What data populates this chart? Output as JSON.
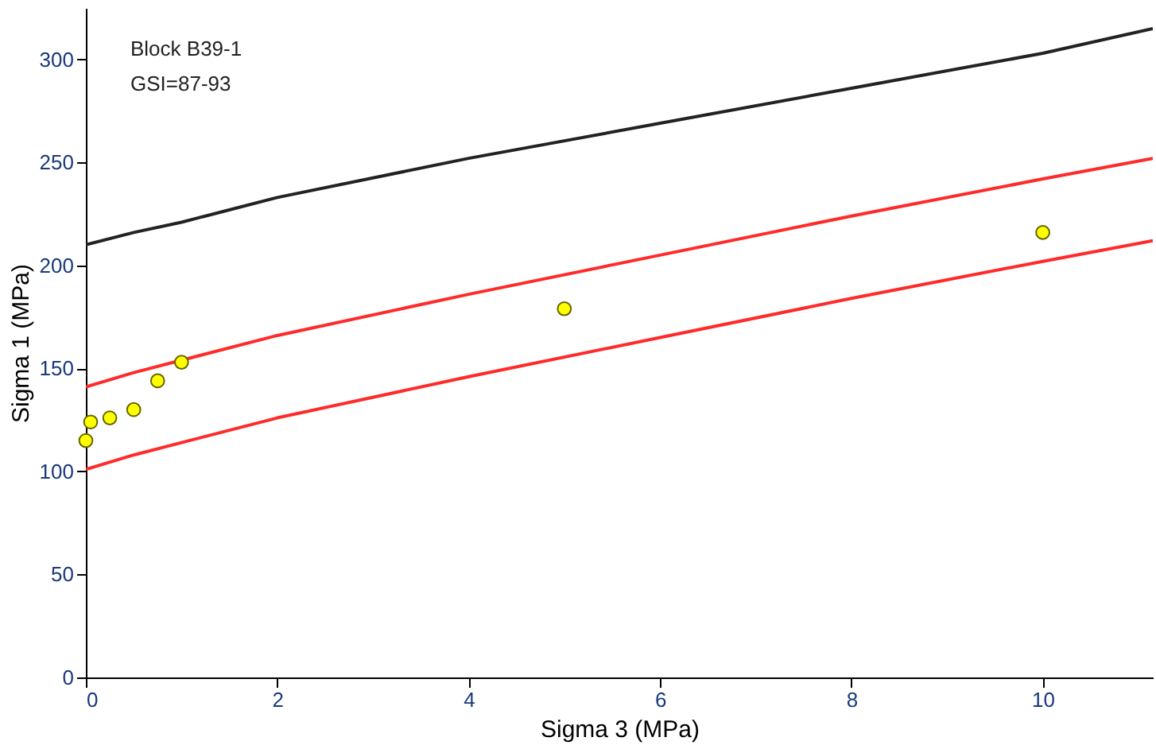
{
  "chart_data": {
    "type": "scatter",
    "xlabel": "Sigma 3 (MPa)",
    "ylabel": "Sigma 1 (MPa)",
    "annotations": [
      "Block B39-1",
      "GSI=87-93"
    ],
    "xlim": [
      0,
      11.15
    ],
    "xticks": [
      0,
      2,
      4,
      6,
      8,
      10
    ],
    "ylim": [
      0,
      325
    ],
    "yticks": [
      0,
      50,
      100,
      150,
      200,
      250,
      300
    ],
    "grid": false,
    "series": [
      {
        "type": "line",
        "color": "#222222",
        "x": [
          0,
          0.5,
          1,
          2,
          4,
          6,
          8,
          10,
          11.15
        ],
        "values": [
          210,
          216,
          221,
          233,
          252,
          269,
          286,
          303,
          315
        ]
      },
      {
        "type": "line",
        "color": "#ff2a2a",
        "x": [
          0,
          0.5,
          1,
          2,
          4,
          6,
          8,
          10,
          11.15
        ],
        "values": [
          141,
          148,
          154,
          166,
          186,
          205,
          224,
          242,
          252
        ]
      },
      {
        "type": "line",
        "color": "#ff2a2a",
        "x": [
          0,
          0.5,
          1,
          2,
          4,
          6,
          8,
          10,
          11.15
        ],
        "values": [
          101,
          108,
          114,
          126,
          146,
          165,
          184,
          202,
          212
        ]
      },
      {
        "type": "scatter",
        "color": "#ffff00",
        "marker": "circle",
        "x": [
          0,
          0.05,
          0.25,
          0.5,
          0.75,
          1,
          5,
          10
        ],
        "values": [
          115,
          124,
          126,
          130,
          144,
          153,
          179,
          216
        ]
      }
    ]
  }
}
